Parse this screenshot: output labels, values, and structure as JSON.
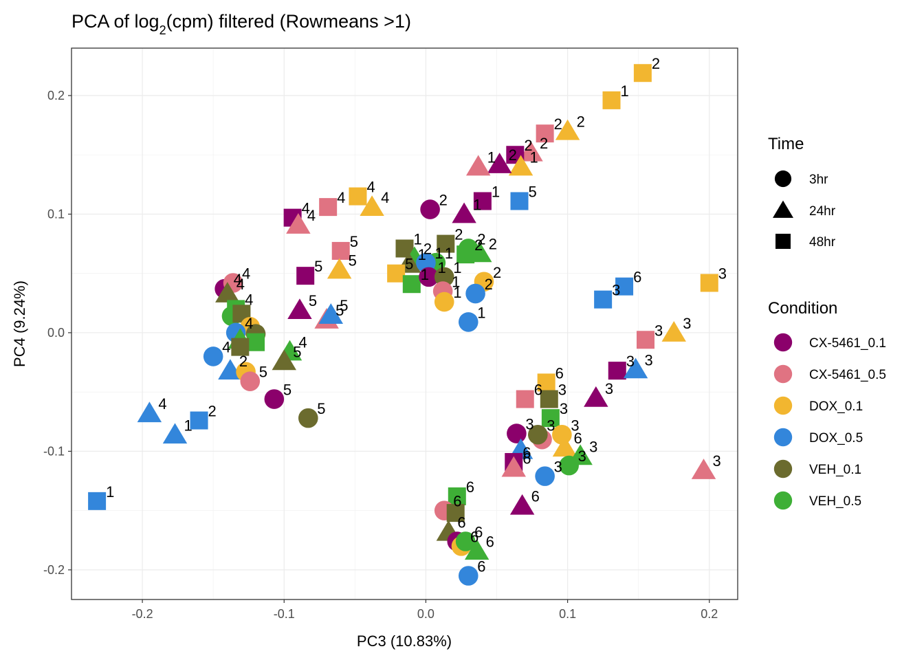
{
  "chart_data": {
    "type": "scatter",
    "title": "PCA of log2(cpm) filtered (Rowmeans >1)",
    "title_parts": {
      "before": "PCA of log",
      "subscript": "2",
      "after": "(cpm) filtered (Rowmeans >1)"
    },
    "xlabel": "PC3 (10.83%)",
    "ylabel": "PC4 (9.24%)",
    "xlim": [
      -0.25,
      0.22
    ],
    "ylim": [
      -0.225,
      0.24
    ],
    "xticks": [
      -0.2,
      -0.1,
      0.0,
      0.1,
      0.2
    ],
    "xtick_labels": [
      "-0.2",
      "-0.1",
      "0.0",
      "0.1",
      "0.2"
    ],
    "yticks": [
      -0.2,
      -0.1,
      0.0,
      0.1,
      0.2
    ],
    "ytick_labels": [
      "-0.2",
      "-0.1",
      "0.0",
      "0.1",
      "0.2"
    ],
    "grid": true,
    "legend_position": "right",
    "legend": {
      "time_title": "Time",
      "time": [
        {
          "label": "3hr",
          "shape": "circle"
        },
        {
          "label": "24hr",
          "shape": "triangle"
        },
        {
          "label": "48hr",
          "shape": "square"
        }
      ],
      "condition_title": "Condition",
      "condition": [
        {
          "label": "CX-5461_0.1",
          "color": "#8B006B"
        },
        {
          "label": "CX-5461_0.5",
          "color": "#E07382"
        },
        {
          "label": "DOX_0.1",
          "color": "#F2B630"
        },
        {
          "label": "DOX_0.5",
          "color": "#3386DB"
        },
        {
          "label": "VEH_0.1",
          "color": "#6B6B2E"
        },
        {
          "label": "VEH_0.5",
          "color": "#3EAF36"
        }
      ]
    },
    "points": [
      {
        "x": 0.153,
        "y": 0.219,
        "c": "DOX_0.1",
        "s": "square",
        "label": "2"
      },
      {
        "x": 0.131,
        "y": 0.196,
        "c": "DOX_0.1",
        "s": "square",
        "label": "1"
      },
      {
        "x": 0.084,
        "y": 0.168,
        "c": "CX-5461_0.5",
        "s": "square",
        "label": "2"
      },
      {
        "x": 0.1,
        "y": 0.17,
        "c": "DOX_0.1",
        "s": "triangle",
        "label": "2"
      },
      {
        "x": 0.074,
        "y": 0.152,
        "c": "CX-5461_0.5",
        "s": "triangle",
        "label": "2"
      },
      {
        "x": 0.063,
        "y": 0.15,
        "c": "CX-5461_0.1",
        "s": "square",
        "label": "2"
      },
      {
        "x": 0.067,
        "y": 0.14,
        "c": "DOX_0.1",
        "s": "triangle",
        "label": "1"
      },
      {
        "x": 0.052,
        "y": 0.142,
        "c": "CX-5461_0.1",
        "s": "triangle",
        "label": "2"
      },
      {
        "x": 0.037,
        "y": 0.14,
        "c": "CX-5461_0.5",
        "s": "triangle",
        "label": "1"
      },
      {
        "x": 0.04,
        "y": 0.111,
        "c": "CX-5461_0.1",
        "s": "square",
        "label": "1"
      },
      {
        "x": 0.066,
        "y": 0.111,
        "c": "DOX_0.5",
        "s": "square",
        "label": "5"
      },
      {
        "x": 0.027,
        "y": 0.1,
        "c": "CX-5461_0.1",
        "s": "triangle",
        "label": "1"
      },
      {
        "x": 0.003,
        "y": 0.104,
        "c": "CX-5461_0.1",
        "s": "circle",
        "label": "2"
      },
      {
        "x": 0.014,
        "y": 0.075,
        "c": "VEH_0.1",
        "s": "square",
        "label": "2"
      },
      {
        "x": 0.028,
        "y": 0.066,
        "c": "VEH_0.5",
        "s": "square",
        "label": "2"
      },
      {
        "x": 0.03,
        "y": 0.071,
        "c": "VEH_0.5",
        "s": "circle",
        "label": "2"
      },
      {
        "x": 0.038,
        "y": 0.067,
        "c": "VEH_0.5",
        "s": "triangle",
        "label": "2"
      },
      {
        "x": -0.015,
        "y": 0.071,
        "c": "VEH_0.1",
        "s": "square",
        "label": "1"
      },
      {
        "x": -0.008,
        "y": 0.063,
        "c": "VEH_0.5",
        "s": "triangle",
        "label": "2"
      },
      {
        "x": -0.012,
        "y": 0.058,
        "c": "VEH_0.1",
        "s": "triangle",
        "label": "1"
      },
      {
        "x": 0.007,
        "y": 0.059,
        "c": "VEH_0.5",
        "s": "circle",
        "label": "1"
      },
      {
        "x": 0.0,
        "y": 0.059,
        "c": "DOX_0.5",
        "s": "circle",
        "label": "1"
      },
      {
        "x": -0.021,
        "y": 0.05,
        "c": "DOX_0.1",
        "s": "square",
        "label": "5"
      },
      {
        "x": -0.01,
        "y": 0.041,
        "c": "VEH_0.5",
        "s": "square",
        "label": "1"
      },
      {
        "x": 0.002,
        "y": 0.047,
        "c": "CX-5461_0.1",
        "s": "circle",
        "label": "1"
      },
      {
        "x": 0.013,
        "y": 0.047,
        "c": "VEH_0.1",
        "s": "circle",
        "label": "1"
      },
      {
        "x": 0.012,
        "y": 0.035,
        "c": "CX-5461_0.5",
        "s": "circle",
        "label": "1"
      },
      {
        "x": 0.013,
        "y": 0.026,
        "c": "DOX_0.1",
        "s": "circle",
        "label": "1"
      },
      {
        "x": 0.041,
        "y": 0.043,
        "c": "DOX_0.1",
        "s": "circle",
        "label": "2"
      },
      {
        "x": 0.035,
        "y": 0.033,
        "c": "DOX_0.5",
        "s": "circle",
        "label": "2"
      },
      {
        "x": 0.03,
        "y": 0.009,
        "c": "DOX_0.5",
        "s": "circle",
        "label": "1"
      },
      {
        "x": -0.069,
        "y": 0.106,
        "c": "CX-5461_0.5",
        "s": "square",
        "label": "4"
      },
      {
        "x": -0.048,
        "y": 0.115,
        "c": "DOX_0.1",
        "s": "square",
        "label": "4"
      },
      {
        "x": -0.038,
        "y": 0.106,
        "c": "DOX_0.1",
        "s": "triangle",
        "label": "4"
      },
      {
        "x": -0.094,
        "y": 0.097,
        "c": "CX-5461_0.1",
        "s": "square",
        "label": "4"
      },
      {
        "x": -0.09,
        "y": 0.091,
        "c": "CX-5461_0.5",
        "s": "triangle",
        "label": "4"
      },
      {
        "x": -0.06,
        "y": 0.069,
        "c": "CX-5461_0.5",
        "s": "square",
        "label": "5"
      },
      {
        "x": -0.061,
        "y": 0.053,
        "c": "DOX_0.1",
        "s": "triangle",
        "label": "5"
      },
      {
        "x": -0.085,
        "y": 0.048,
        "c": "CX-5461_0.1",
        "s": "square",
        "label": "5"
      },
      {
        "x": -0.089,
        "y": 0.019,
        "c": "CX-5461_0.1",
        "s": "triangle",
        "label": "5"
      },
      {
        "x": -0.07,
        "y": 0.011,
        "c": "CX-5461_0.5",
        "s": "triangle",
        "label": "5"
      },
      {
        "x": -0.067,
        "y": 0.015,
        "c": "DOX_0.5",
        "s": "triangle",
        "label": "5"
      },
      {
        "x": -0.142,
        "y": 0.037,
        "c": "CX-5461_0.1",
        "s": "circle",
        "label": "4"
      },
      {
        "x": -0.136,
        "y": 0.042,
        "c": "CX-5461_0.5",
        "s": "circle",
        "label": "4"
      },
      {
        "x": -0.14,
        "y": 0.033,
        "c": "VEH_0.1",
        "s": "triangle",
        "label": "4"
      },
      {
        "x": -0.134,
        "y": 0.02,
        "c": "VEH_0.5",
        "s": "square",
        "label": "4"
      },
      {
        "x": -0.137,
        "y": 0.014,
        "c": "VEH_0.5",
        "s": "circle",
        "label": ""
      },
      {
        "x": -0.13,
        "y": 0.016,
        "c": "VEH_0.1",
        "s": "square",
        "label": ""
      },
      {
        "x": -0.124,
        "y": 0.005,
        "c": "DOX_0.1",
        "s": "circle",
        "label": ""
      },
      {
        "x": -0.12,
        "y": -0.001,
        "c": "VEH_0.1",
        "s": "circle",
        "label": ""
      },
      {
        "x": -0.134,
        "y": 0.0,
        "c": "DOX_0.5",
        "s": "circle",
        "label": "4"
      },
      {
        "x": -0.131,
        "y": -0.006,
        "c": "VEH_0.5",
        "s": "triangle",
        "label": ""
      },
      {
        "x": -0.12,
        "y": -0.008,
        "c": "VEH_0.5",
        "s": "square",
        "label": ""
      },
      {
        "x": -0.131,
        "y": -0.012,
        "c": "VEH_0.1",
        "s": "square",
        "label": ""
      },
      {
        "x": -0.15,
        "y": -0.02,
        "c": "DOX_0.5",
        "s": "circle",
        "label": "4"
      },
      {
        "x": -0.096,
        "y": -0.016,
        "c": "VEH_0.5",
        "s": "triangle",
        "label": "4"
      },
      {
        "x": -0.1,
        "y": -0.024,
        "c": "VEH_0.1",
        "s": "triangle",
        "label": "5"
      },
      {
        "x": -0.138,
        "y": -0.032,
        "c": "DOX_0.5",
        "s": "triangle",
        "label": "2"
      },
      {
        "x": -0.127,
        "y": -0.033,
        "c": "DOX_0.1",
        "s": "circle",
        "label": ""
      },
      {
        "x": -0.124,
        "y": -0.041,
        "c": "CX-5461_0.5",
        "s": "circle",
        "label": "5"
      },
      {
        "x": -0.107,
        "y": -0.056,
        "c": "CX-5461_0.1",
        "s": "circle",
        "label": "5"
      },
      {
        "x": -0.083,
        "y": -0.072,
        "c": "VEH_0.1",
        "s": "circle",
        "label": "5"
      },
      {
        "x": -0.195,
        "y": -0.068,
        "c": "DOX_0.5",
        "s": "triangle",
        "label": "4"
      },
      {
        "x": -0.16,
        "y": -0.074,
        "c": "DOX_0.5",
        "s": "square",
        "label": "2"
      },
      {
        "x": -0.177,
        "y": -0.086,
        "c": "DOX_0.5",
        "s": "triangle",
        "label": "1"
      },
      {
        "x": -0.232,
        "y": -0.142,
        "c": "DOX_0.5",
        "s": "square",
        "label": "1"
      },
      {
        "x": 0.2,
        "y": 0.042,
        "c": "DOX_0.1",
        "s": "square",
        "label": "3"
      },
      {
        "x": 0.14,
        "y": 0.039,
        "c": "DOX_0.5",
        "s": "square",
        "label": "6"
      },
      {
        "x": 0.125,
        "y": 0.028,
        "c": "DOX_0.5",
        "s": "square",
        "label": "3"
      },
      {
        "x": 0.155,
        "y": -0.006,
        "c": "CX-5461_0.5",
        "s": "square",
        "label": "3"
      },
      {
        "x": 0.175,
        "y": 0.0,
        "c": "DOX_0.1",
        "s": "triangle",
        "label": "3"
      },
      {
        "x": 0.135,
        "y": -0.032,
        "c": "CX-5461_0.1",
        "s": "square",
        "label": "3"
      },
      {
        "x": 0.148,
        "y": -0.031,
        "c": "DOX_0.5",
        "s": "triangle",
        "label": "3"
      },
      {
        "x": 0.12,
        "y": -0.055,
        "c": "CX-5461_0.1",
        "s": "triangle",
        "label": "3"
      },
      {
        "x": 0.085,
        "y": -0.042,
        "c": "DOX_0.1",
        "s": "square",
        "label": "6"
      },
      {
        "x": 0.07,
        "y": -0.056,
        "c": "CX-5461_0.5",
        "s": "square",
        "label": "6"
      },
      {
        "x": 0.087,
        "y": -0.056,
        "c": "VEH_0.1",
        "s": "square",
        "label": "3"
      },
      {
        "x": 0.088,
        "y": -0.072,
        "c": "VEH_0.5",
        "s": "square",
        "label": "3"
      },
      {
        "x": 0.064,
        "y": -0.085,
        "c": "CX-5461_0.1",
        "s": "circle",
        "label": "3"
      },
      {
        "x": 0.082,
        "y": -0.09,
        "c": "CX-5461_0.5",
        "s": "circle",
        "label": ""
      },
      {
        "x": 0.079,
        "y": -0.086,
        "c": "VEH_0.1",
        "s": "circle",
        "label": "3"
      },
      {
        "x": 0.096,
        "y": -0.086,
        "c": "DOX_0.1",
        "s": "circle",
        "label": "3"
      },
      {
        "x": 0.098,
        "y": -0.097,
        "c": "DOX_0.1",
        "s": "triangle",
        "label": "6"
      },
      {
        "x": 0.109,
        "y": -0.104,
        "c": "VEH_0.5",
        "s": "triangle",
        "label": "3"
      },
      {
        "x": 0.101,
        "y": -0.112,
        "c": "VEH_0.5",
        "s": "circle",
        "label": "3"
      },
      {
        "x": 0.067,
        "y": -0.099,
        "c": "DOX_0.5",
        "s": "triangle",
        "label": ""
      },
      {
        "x": 0.062,
        "y": -0.109,
        "c": "CX-5461_0.1",
        "s": "square",
        "label": "6"
      },
      {
        "x": 0.062,
        "y": -0.114,
        "c": "CX-5461_0.5",
        "s": "triangle",
        "label": "6"
      },
      {
        "x": 0.084,
        "y": -0.121,
        "c": "DOX_0.5",
        "s": "circle",
        "label": "3"
      },
      {
        "x": 0.068,
        "y": -0.146,
        "c": "CX-5461_0.1",
        "s": "triangle",
        "label": "6"
      },
      {
        "x": 0.022,
        "y": -0.138,
        "c": "VEH_0.5",
        "s": "square",
        "label": "6"
      },
      {
        "x": 0.013,
        "y": -0.15,
        "c": "CX-5461_0.5",
        "s": "circle",
        "label": "6"
      },
      {
        "x": 0.021,
        "y": -0.152,
        "c": "VEH_0.1",
        "s": "square",
        "label": ""
      },
      {
        "x": 0.016,
        "y": -0.168,
        "c": "VEH_0.1",
        "s": "triangle",
        "label": "6"
      },
      {
        "x": 0.022,
        "y": -0.176,
        "c": "CX-5461_0.1",
        "s": "circle",
        "label": ""
      },
      {
        "x": 0.025,
        "y": -0.18,
        "c": "DOX_0.1",
        "s": "circle",
        "label": "6"
      },
      {
        "x": 0.028,
        "y": -0.176,
        "c": "VEH_0.5",
        "s": "circle",
        "label": "6"
      },
      {
        "x": 0.036,
        "y": -0.184,
        "c": "VEH_0.5",
        "s": "triangle",
        "label": "6"
      },
      {
        "x": 0.03,
        "y": -0.205,
        "c": "DOX_0.5",
        "s": "circle",
        "label": "6"
      },
      {
        "x": 0.196,
        "y": -0.116,
        "c": "CX-5461_0.5",
        "s": "triangle",
        "label": "3"
      }
    ]
  }
}
